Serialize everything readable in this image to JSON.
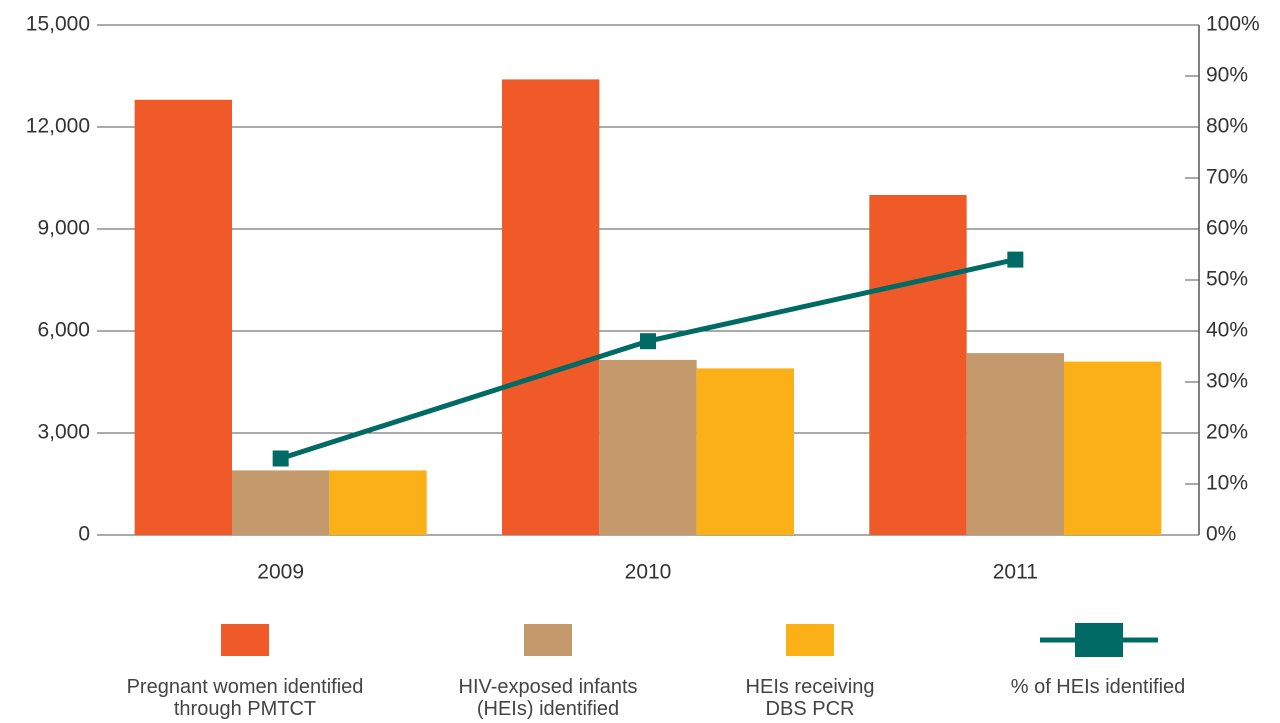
{
  "chart_data": {
    "type": "bar",
    "categories": [
      "2009",
      "2010",
      "2011"
    ],
    "series": [
      {
        "name": "Pregnant women identified through PMTCT",
        "color": "#f05a28",
        "values": [
          12800,
          13400,
          10000
        ]
      },
      {
        "name": "HIV-exposed infants (HEIs) identified",
        "color": "#c49a6c",
        "values": [
          1900,
          5150,
          5350
        ]
      },
      {
        "name": "HEIs receiving DBS PCR",
        "color": "#fbb017",
        "values": [
          1900,
          4900,
          5100
        ]
      },
      {
        "name": "% of HEIs identified",
        "color": "#006a65",
        "type": "line",
        "axis": "y2",
        "values": [
          15,
          38,
          54
        ]
      }
    ],
    "ylim": [
      0,
      15000
    ],
    "yticks": [
      0,
      {
        "value": 3000,
        "label": "3,000"
      },
      {
        "value": 6000,
        "label": "6,000"
      },
      {
        "value": 9000,
        "label": "9,000"
      },
      {
        "value": 12000,
        "label": "12,000"
      },
      {
        "value": 15000,
        "label": "15,000"
      }
    ],
    "y2lim": [
      0,
      100
    ],
    "y2ticks": [
      {
        "value": 0,
        "label": "0%"
      },
      {
        "value": 10,
        "label": "10%"
      },
      {
        "value": 20,
        "label": "20%"
      },
      {
        "value": 30,
        "label": "30%"
      },
      {
        "value": 40,
        "label": "40%"
      },
      {
        "value": 50,
        "label": "50%"
      },
      {
        "value": 60,
        "label": "60%"
      },
      {
        "value": 70,
        "label": "70%"
      },
      {
        "value": 80,
        "label": "80%"
      },
      {
        "value": 90,
        "label": "90%"
      },
      {
        "value": 100,
        "label": "100%"
      }
    ],
    "grid": true,
    "legend": "bottom"
  }
}
